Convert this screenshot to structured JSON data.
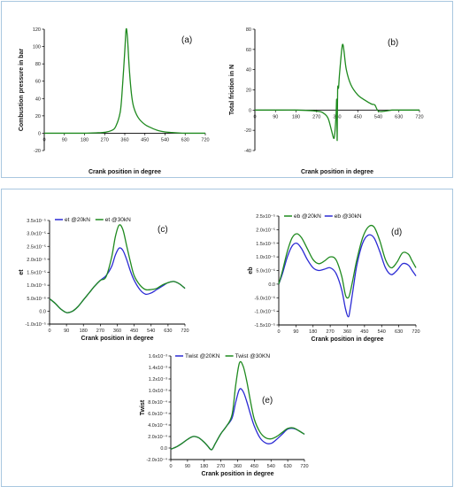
{
  "colors": {
    "green": "#1f8a1f",
    "blue": "#2b2bd4",
    "frame": "#a9c7e0"
  },
  "chart_data": [
    {
      "id": "a",
      "panel_label": "(a)",
      "type": "line",
      "xlabel": "Crank position in degree",
      "ylabel": "Combustion pressure in bar",
      "xlim": [
        0,
        720
      ],
      "ylim": [
        -20,
        120
      ],
      "xticks": [
        "0",
        "90",
        "180",
        "270",
        "360",
        "450",
        "540",
        "630",
        "720"
      ],
      "yticks": [
        "-20",
        "0",
        "20",
        "40",
        "60",
        "80",
        "100",
        "120"
      ],
      "legend": [],
      "series": [
        {
          "color": "#1f8a1f",
          "x": [
            0,
            90,
            180,
            240,
            270,
            300,
            320,
            340,
            350,
            360,
            366,
            372,
            380,
            390,
            400,
            420,
            450,
            480,
            510,
            540,
            570,
            600,
            630,
            660,
            690,
            720
          ],
          "y": [
            0,
            0,
            0,
            0.5,
            1,
            3,
            8,
            25,
            55,
            95,
            120,
            110,
            75,
            45,
            30,
            18,
            10,
            6,
            3,
            1.5,
            0.8,
            0.3,
            0,
            0,
            0,
            0
          ]
        }
      ]
    },
    {
      "id": "b",
      "panel_label": "(b)",
      "type": "line",
      "xlabel": "Crank position in degree",
      "ylabel": "Total friction in N",
      "xlim": [
        0,
        720
      ],
      "ylim": [
        -40,
        80
      ],
      "xticks": [
        "0",
        "90",
        "180",
        "270",
        "360",
        "450",
        "540",
        "630",
        "720"
      ],
      "yticks": [
        "-40",
        "-20",
        "0",
        "20",
        "40",
        "60",
        "80"
      ],
      "legend": [],
      "series": [
        {
          "color": "#1f8a1f",
          "x": [
            0,
            90,
            180,
            270,
            300,
            320,
            335,
            345,
            350,
            355,
            358,
            360,
            362,
            366,
            370,
            380,
            385,
            390,
            400,
            420,
            450,
            480,
            510,
            525,
            540,
            570,
            600,
            630,
            660,
            720
          ],
          "y": [
            0,
            0,
            0,
            -1,
            -3,
            -8,
            -20,
            -28,
            -22,
            -5,
            10,
            -30,
            20,
            22,
            35,
            60,
            65,
            58,
            40,
            25,
            15,
            10,
            6,
            5,
            -1,
            -1,
            0,
            0,
            0,
            0
          ]
        }
      ]
    },
    {
      "id": "c",
      "panel_label": "(c)",
      "type": "line",
      "xlabel": "Crank position in degree",
      "ylabel": "et",
      "xlim": [
        0,
        720
      ],
      "ylim": [
        -1.0,
        3.5
      ],
      "xticks": [
        "0",
        "90",
        "180",
        "270",
        "360",
        "450",
        "540",
        "630",
        "720"
      ],
      "yticks": [
        "-1.0x10⁻⁵",
        "0.0",
        "5.0x10⁻⁶",
        "1.0x10⁻⁵",
        "1.5x10⁻⁵",
        "2.0x10⁻⁵",
        "2.5x10⁻⁵",
        "3.0x10⁻⁵",
        "3.5x10⁻⁵"
      ],
      "legend": [
        "et @20kN",
        "et @30kN"
      ],
      "series": [
        {
          "name": "et @20kN",
          "color": "#2b2bd4",
          "x": [
            0,
            30,
            60,
            90,
            120,
            150,
            180,
            210,
            240,
            270,
            300,
            330,
            350,
            370,
            390,
            410,
            430,
            450,
            480,
            510,
            540,
            570,
            600,
            630,
            660,
            690,
            720
          ],
          "y": [
            0.1,
            -0.1,
            -0.35,
            -0.5,
            -0.45,
            -0.25,
            0.05,
            0.35,
            0.65,
            0.9,
            1.1,
            1.5,
            2.0,
            2.3,
            2.2,
            1.8,
            1.3,
            0.9,
            0.5,
            0.3,
            0.35,
            0.5,
            0.65,
            0.8,
            0.85,
            0.75,
            0.55
          ]
        },
        {
          "name": "et @30kN",
          "color": "#1f8a1f",
          "x": [
            0,
            30,
            60,
            90,
            120,
            150,
            180,
            210,
            240,
            270,
            300,
            330,
            350,
            370,
            390,
            410,
            430,
            450,
            480,
            510,
            540,
            570,
            600,
            630,
            660,
            690,
            720
          ],
          "y": [
            0.1,
            -0.1,
            -0.35,
            -0.5,
            -0.45,
            -0.25,
            0.05,
            0.35,
            0.65,
            0.9,
            1.05,
            1.9,
            2.8,
            3.3,
            3.1,
            2.4,
            1.7,
            1.1,
            0.7,
            0.5,
            0.5,
            0.55,
            0.7,
            0.8,
            0.85,
            0.75,
            0.55
          ]
        }
      ]
    },
    {
      "id": "d",
      "panel_label": "(d)",
      "type": "line",
      "xlabel": "Crank position in degree",
      "ylabel": "eb",
      "xlim": [
        0,
        720
      ],
      "ylim": [
        -1.5,
        2.5
      ],
      "xticks": [
        "0",
        "90",
        "180",
        "270",
        "360",
        "450",
        "540",
        "630",
        "720"
      ],
      "yticks": [
        "-1.5x10⁻⁵",
        "-1.0x10⁻⁵",
        "-5.0x10⁻⁶",
        "0.0",
        "5.0x10⁻⁶",
        "1.0x10⁻⁵",
        "1.5x10⁻⁵",
        "2.0x10⁻⁵",
        "2.5x10⁻⁵"
      ],
      "legend": [
        "eb @20kN",
        "eb @30kN"
      ],
      "series": [
        {
          "name": "eb @30kN",
          "color": "#2b2bd4",
          "x": [
            0,
            20,
            45,
            70,
            95,
            120,
            150,
            180,
            210,
            240,
            270,
            300,
            330,
            350,
            365,
            375,
            390,
            410,
            440,
            470,
            500,
            530,
            560,
            590,
            620,
            650,
            680,
            700,
            720
          ],
          "y": [
            0,
            0.4,
            1.0,
            1.4,
            1.5,
            1.3,
            0.9,
            0.6,
            0.5,
            0.55,
            0.6,
            0.4,
            -0.2,
            -0.9,
            -1.2,
            -0.9,
            -0.2,
            0.7,
            1.5,
            1.8,
            1.7,
            1.2,
            0.6,
            0.35,
            0.5,
            0.75,
            0.7,
            0.5,
            0.3
          ]
        },
        {
          "name": "eb @20kN",
          "color": "#1f8a1f",
          "x": [
            0,
            20,
            45,
            70,
            95,
            120,
            150,
            180,
            210,
            240,
            270,
            300,
            330,
            350,
            365,
            375,
            390,
            410,
            440,
            470,
            500,
            530,
            560,
            590,
            620,
            650,
            680,
            700,
            720
          ],
          "y": [
            0,
            0.5,
            1.2,
            1.7,
            1.85,
            1.7,
            1.3,
            0.9,
            0.75,
            0.85,
            1.0,
            0.9,
            0.3,
            -0.4,
            -0.5,
            -0.3,
            0.2,
            0.9,
            1.7,
            2.1,
            2.1,
            1.6,
            0.9,
            0.6,
            0.8,
            1.15,
            1.1,
            0.85,
            0.6
          ]
        }
      ]
    },
    {
      "id": "e",
      "panel_label": "(e)",
      "type": "line",
      "xlabel": "Crank position in degree",
      "ylabel": "Twist",
      "xlim": [
        0,
        720
      ],
      "ylim": [
        -2.0,
        16.0
      ],
      "xticks": [
        "0",
        "90",
        "180",
        "270",
        "360",
        "450",
        "540",
        "630",
        "720"
      ],
      "yticks": [
        "-2.0x10⁻⁴",
        "0.0",
        "2.0x10⁻⁴",
        "4.0x10⁻⁴",
        "6.0x10⁻⁴",
        "8.0x10⁻⁴",
        "1.0x10⁻³",
        "1.2x10⁻³",
        "1.4x10⁻³",
        "1.6x10⁻³"
      ],
      "legend": [
        "Twist @20KN",
        "Twist @30KN"
      ],
      "series": [
        {
          "name": "Twist @20KN",
          "color": "#2b2bd4",
          "x": [
            0,
            30,
            60,
            90,
            120,
            150,
            180,
            200,
            220,
            240,
            270,
            300,
            330,
            350,
            370,
            390,
            410,
            430,
            450,
            480,
            510,
            540,
            570,
            600,
            630,
            660,
            690,
            720
          ],
          "y": [
            -0.2,
            0.2,
            0.8,
            1.5,
            2.0,
            1.8,
            1.0,
            0.3,
            -0.3,
            0.8,
            2.5,
            3.8,
            5.2,
            8.0,
            10.2,
            9.8,
            8.0,
            5.8,
            3.8,
            1.8,
            0.9,
            0.8,
            1.5,
            2.4,
            3.3,
            3.4,
            3.0,
            2.4
          ]
        },
        {
          "name": "Twist @30KN",
          "color": "#1f8a1f",
          "x": [
            0,
            30,
            60,
            90,
            120,
            150,
            180,
            200,
            220,
            240,
            270,
            300,
            330,
            350,
            370,
            390,
            410,
            430,
            450,
            480,
            510,
            540,
            570,
            600,
            630,
            660,
            690,
            720
          ],
          "y": [
            -0.2,
            0.2,
            0.8,
            1.5,
            2.0,
            1.8,
            1.0,
            0.3,
            -0.3,
            0.8,
            2.5,
            3.8,
            5.8,
            11.0,
            14.8,
            14.2,
            11.5,
            8.0,
            5.0,
            2.8,
            1.8,
            1.6,
            2.0,
            2.7,
            3.4,
            3.5,
            3.0,
            2.4
          ]
        }
      ]
    }
  ]
}
